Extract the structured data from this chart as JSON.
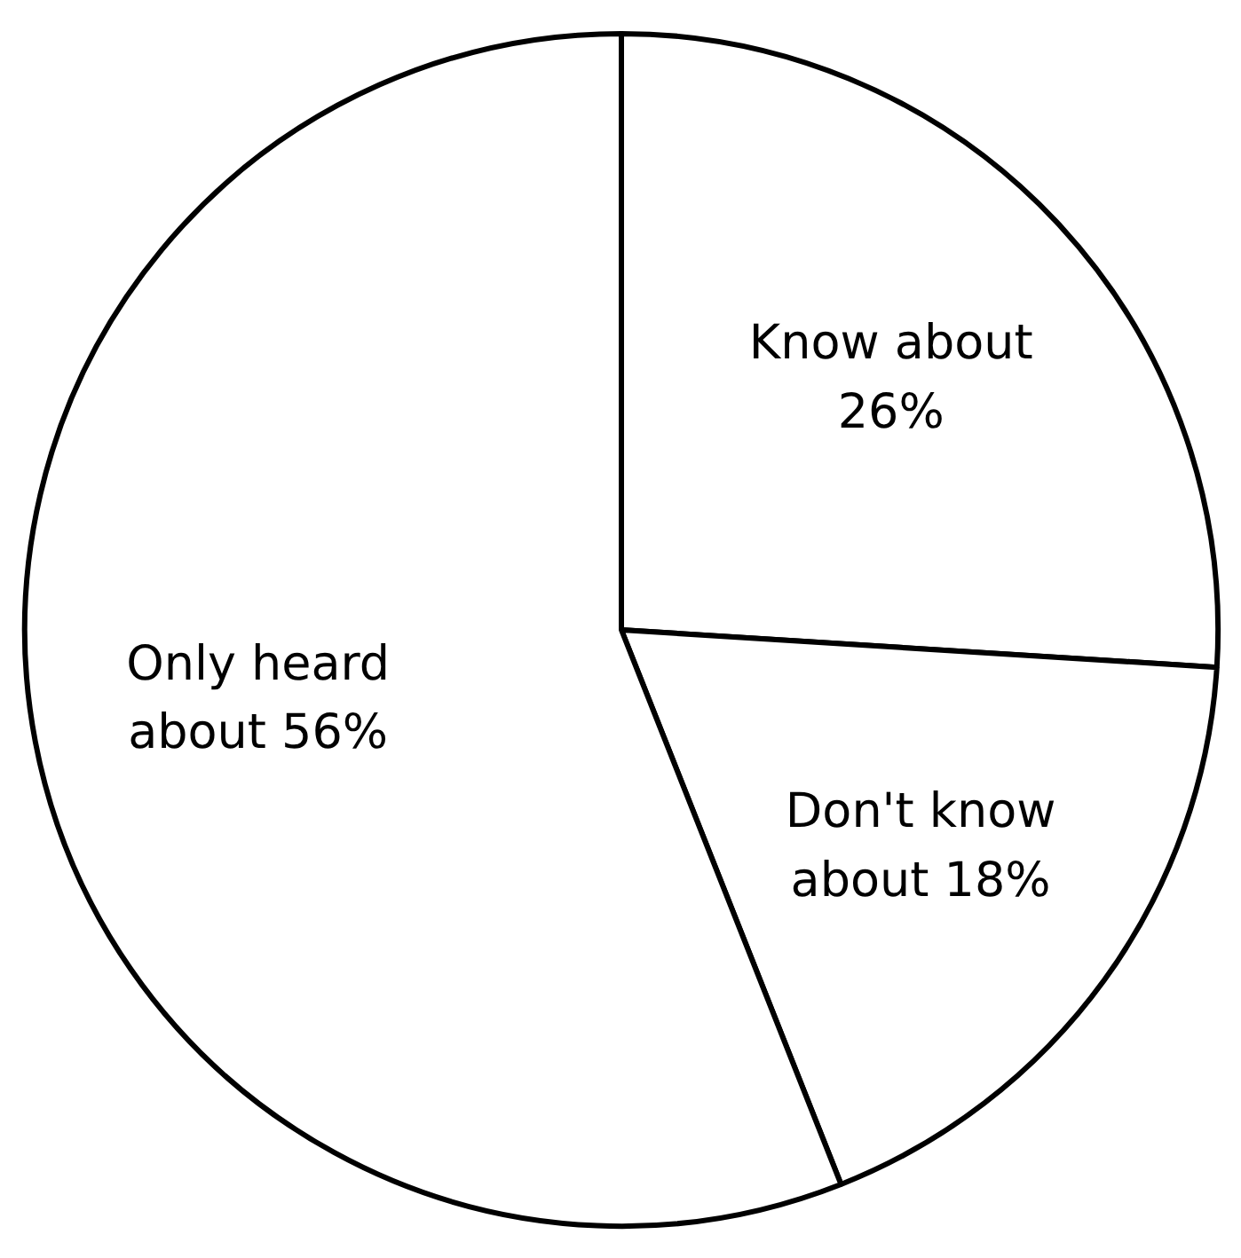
{
  "chart_data": {
    "type": "pie",
    "categories": [
      "Know about",
      "Don't know about",
      "Only heard about"
    ],
    "values": [
      26,
      18,
      56
    ],
    "colors": [
      "#ffffff",
      "#ffffff",
      "#ffffff"
    ],
    "value_labels": [
      "26%",
      "18%",
      "56%"
    ]
  }
}
